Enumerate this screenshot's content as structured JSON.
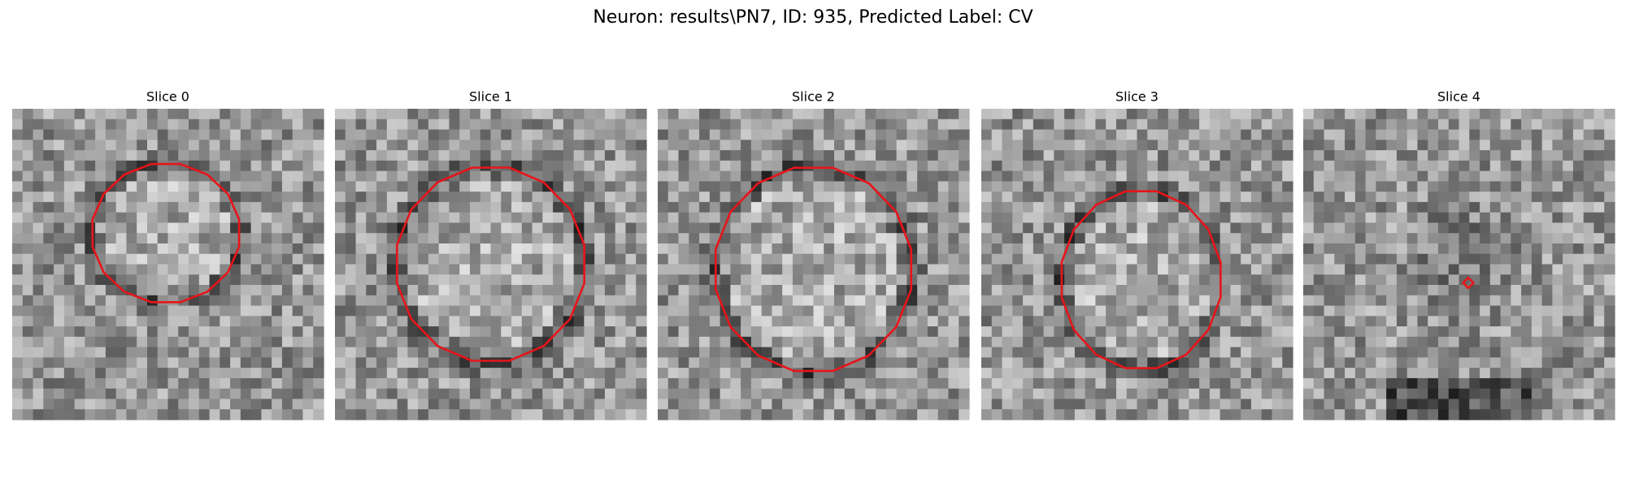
{
  "header": {
    "title": "Neuron: results\\PN7, ID: 935, Predicted Label: CV"
  },
  "panels": [
    {
      "title": "Slice 0"
    },
    {
      "title": "Slice 1"
    },
    {
      "title": "Slice 2"
    },
    {
      "title": "Slice 3"
    },
    {
      "title": "Slice 4"
    }
  ]
}
